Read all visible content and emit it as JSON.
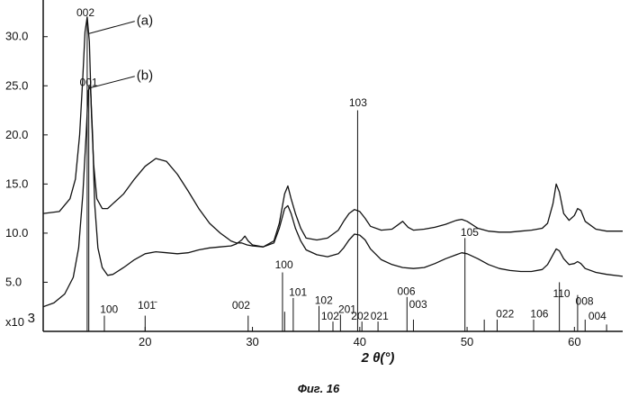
{
  "chart_data": {
    "type": "line",
    "title": "",
    "xlabel": "2 θ(°)",
    "ylabel": "",
    "y_unit": "x10",
    "y_unit_exp": "3",
    "caption": "Фиг. 16",
    "xlim": [
      10.5,
      64.5
    ],
    "ylim": [
      0,
      33
    ],
    "x_ticks": [
      {
        "value": 20,
        "label": "20"
      },
      {
        "value": 30,
        "label": "30"
      },
      {
        "value": 40,
        "label": "40"
      },
      {
        "value": 50,
        "label": "50"
      },
      {
        "value": 60,
        "label": "60"
      }
    ],
    "y_ticks": [
      {
        "value": 5,
        "label": "5.0"
      },
      {
        "value": 10,
        "label": "10.0"
      },
      {
        "value": 15,
        "label": "15.0"
      },
      {
        "value": 20,
        "label": "20.0"
      },
      {
        "value": 25,
        "label": "25.0"
      },
      {
        "value": 30,
        "label": "30.0"
      }
    ],
    "series": [
      {
        "name": "(a)",
        "color": "#111111",
        "label": "(a)",
        "label_pos": [
          14.7,
          30.3
        ],
        "label_text_pos": [
          19.2,
          31.2
        ],
        "x": [
          10.5,
          12,
          13,
          13.5,
          13.9,
          14.2,
          14.4,
          14.6,
          14.8,
          15.0,
          15.2,
          15.5,
          16,
          16.5,
          17,
          18,
          19,
          20,
          21,
          22,
          23,
          24,
          25,
          26,
          27,
          28,
          28.5,
          29,
          29.5,
          30,
          31,
          32,
          32.5,
          33,
          33.3,
          33.6,
          34,
          34.5,
          35,
          36,
          37,
          38,
          38.5,
          39,
          39.5,
          40,
          40.5,
          41,
          42,
          43,
          43.5,
          44,
          44.5,
          45,
          46,
          47,
          48,
          49,
          49.5,
          50,
          51,
          52,
          53,
          54,
          55,
          56,
          57,
          57.5,
          58,
          58.3,
          58.6,
          59,
          59.5,
          60,
          60.3,
          60.6,
          61,
          62,
          63,
          64.5
        ],
        "y": [
          12,
          12.2,
          13.5,
          15.5,
          20,
          26,
          30.5,
          32,
          29.5,
          22,
          17,
          13.5,
          12.5,
          12.5,
          13,
          14,
          15.5,
          16.8,
          17.6,
          17.3,
          16,
          14.3,
          12.5,
          11,
          10,
          9.2,
          9.0,
          9.0,
          8.8,
          8.7,
          8.6,
          9.2,
          11,
          14,
          14.8,
          13.5,
          12,
          10.5,
          9.5,
          9.3,
          9.5,
          10.3,
          11.2,
          12,
          12.4,
          12.2,
          11.5,
          10.7,
          10.3,
          10.4,
          10.8,
          11.2,
          10.6,
          10.3,
          10.4,
          10.6,
          10.9,
          11.3,
          11.4,
          11.2,
          10.5,
          10.2,
          10.1,
          10.1,
          10.2,
          10.3,
          10.5,
          11,
          13,
          15,
          14.2,
          12,
          11.3,
          11.8,
          12.5,
          12.3,
          11.2,
          10.4,
          10.2,
          10.2
        ]
      },
      {
        "name": "(b)",
        "color": "#111111",
        "label": "(b)",
        "label_pos": [
          14.9,
          24.8
        ],
        "label_text_pos": [
          19.2,
          25.6
        ],
        "x": [
          10.5,
          11.5,
          12.5,
          13.3,
          13.8,
          14.2,
          14.5,
          14.7,
          14.9,
          15.1,
          15.3,
          15.6,
          16,
          16.5,
          17,
          18,
          19,
          20,
          21,
          22,
          23,
          24,
          25,
          26,
          27,
          28,
          28.5,
          29,
          29.3,
          29.6,
          30,
          31,
          32,
          32.5,
          33,
          33.3,
          33.6,
          34,
          34.5,
          35,
          36,
          37,
          38,
          38.5,
          39,
          39.5,
          40,
          40.5,
          41,
          42,
          43,
          44,
          45,
          46,
          47,
          48,
          49,
          49.5,
          50,
          51,
          52,
          53,
          54,
          55,
          56,
          57,
          57.5,
          58,
          58.3,
          58.6,
          59,
          59.5,
          60,
          60.3,
          60.6,
          61,
          62,
          63,
          64.5
        ],
        "y": [
          2.5,
          2.9,
          3.8,
          5.5,
          8.5,
          14,
          20,
          24.5,
          25,
          20,
          13,
          8.5,
          6.5,
          5.7,
          5.8,
          6.5,
          7.3,
          7.9,
          8.1,
          8.0,
          7.9,
          8.0,
          8.3,
          8.5,
          8.6,
          8.7,
          8.9,
          9.3,
          9.7,
          9.2,
          8.8,
          8.6,
          9.0,
          10.5,
          12.5,
          12.8,
          12,
          10.5,
          9.2,
          8.3,
          7.8,
          7.6,
          7.9,
          8.5,
          9.3,
          9.9,
          9.8,
          9.3,
          8.4,
          7.3,
          6.8,
          6.5,
          6.4,
          6.5,
          6.9,
          7.4,
          7.8,
          8.0,
          7.9,
          7.4,
          6.8,
          6.4,
          6.2,
          6.1,
          6.1,
          6.3,
          6.8,
          7.8,
          8.4,
          8.2,
          7.4,
          6.8,
          6.9,
          7.1,
          6.9,
          6.4,
          6.0,
          5.8,
          5.6
        ]
      }
    ],
    "reference_lines": [
      {
        "x": 14.75,
        "h": 25,
        "label": "001",
        "label_at": [
          13.9,
          25.0
        ]
      },
      {
        "x": 14.6,
        "h": 32,
        "label": "002",
        "label_at": [
          13.6,
          32.1
        ]
      },
      {
        "x": 16.2,
        "h": 1.6,
        "label": "100",
        "label_at": [
          15.8,
          1.9
        ]
      },
      {
        "x": 20.0,
        "h": 1.6,
        "label": "101̄",
        "label_at": [
          19.3,
          2.3
        ]
      },
      {
        "x": 29.6,
        "h": 1.6,
        "label": "002",
        "label_at": [
          28.1,
          2.3
        ]
      },
      {
        "x": 32.8,
        "h": 6.0,
        "label": "100",
        "label_at": [
          32.1,
          6.4
        ]
      },
      {
        "x": 33.0,
        "h": 2.0,
        "label": "",
        "label_at": [
          0,
          0
        ]
      },
      {
        "x": 33.8,
        "h": 3.4,
        "label": "101",
        "label_at": [
          33.4,
          3.6
        ]
      },
      {
        "x": 36.2,
        "h": 2.6,
        "label": "102",
        "label_at": [
          35.8,
          2.8
        ]
      },
      {
        "x": 37.5,
        "h": 1.0,
        "label": "102",
        "label_at": [
          36.4,
          1.2
        ]
      },
      {
        "x": 38.2,
        "h": 1.7,
        "label": "201",
        "label_at": [
          38.0,
          1.9
        ]
      },
      {
        "x": 39.8,
        "h": 22.5,
        "label": "103",
        "label_at": [
          39.0,
          22.9
        ]
      },
      {
        "x": 40.2,
        "h": 1.0,
        "label": "202",
        "label_at": [
          39.2,
          1.2
        ]
      },
      {
        "x": 41.7,
        "h": 1.0,
        "label": "021",
        "label_at": [
          41.0,
          1.2
        ]
      },
      {
        "x": 44.4,
        "h": 3.5,
        "label": "006",
        "label_at": [
          43.5,
          3.7
        ]
      },
      {
        "x": 45.0,
        "h": 1.2,
        "label": "003",
        "label_at": [
          44.6,
          2.4
        ]
      },
      {
        "x": 49.8,
        "h": 9.5,
        "label": "105",
        "label_at": [
          49.4,
          9.7
        ]
      },
      {
        "x": 51.6,
        "h": 1.2,
        "label": "",
        "label_at": [
          0,
          0
        ]
      },
      {
        "x": 52.8,
        "h": 1.2,
        "label": "022",
        "label_at": [
          52.7,
          1.4
        ]
      },
      {
        "x": 56.2,
        "h": 1.2,
        "label": "106",
        "label_at": [
          55.9,
          1.4
        ]
      },
      {
        "x": 58.6,
        "h": 5.0,
        "label": "110",
        "label_at": [
          58.0,
          3.5
        ]
      },
      {
        "x": 60.3,
        "h": 3.7,
        "label": "008",
        "label_at": [
          60.1,
          2.7
        ]
      },
      {
        "x": 61.0,
        "h": 1.2,
        "label": "004",
        "label_at": [
          61.3,
          1.2
        ]
      },
      {
        "x": 63.0,
        "h": 0.7,
        "label": "",
        "label_at": [
          0,
          0
        ]
      }
    ],
    "grid": false,
    "legend": "none"
  }
}
